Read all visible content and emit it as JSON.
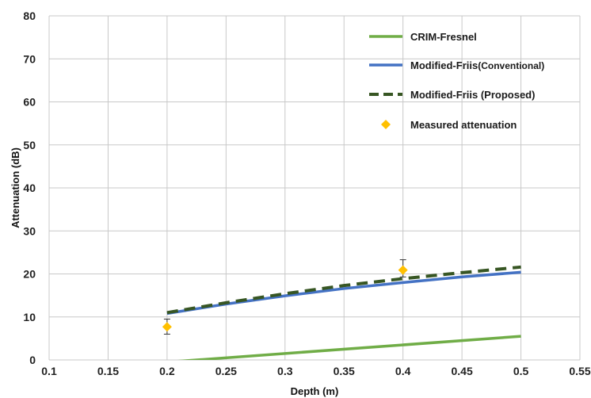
{
  "chart_data": {
    "type": "line",
    "xlabel": "Depth (m)",
    "ylabel": "Attenuation (dB)",
    "xlim": [
      0.1,
      0.55
    ],
    "ylim": [
      0,
      80
    ],
    "xticks": [
      "0.1",
      "0.15",
      "0.2",
      "0.25",
      "0.3",
      "0.35",
      "0.4",
      "0.45",
      "0.5",
      "0.55"
    ],
    "yticks": [
      "0",
      "10",
      "20",
      "30",
      "40",
      "50",
      "60",
      "70",
      "80"
    ],
    "grid": true,
    "legend_position": "top-right",
    "series": [
      {
        "name": "CRIM-Fresnel",
        "style": "solid",
        "color": "#70ad47",
        "x": [
          0.2,
          0.5
        ],
        "y": [
          -0.5,
          5.5
        ]
      },
      {
        "name": "Modified-Friis",
        "name_suffix": "(Conventional)",
        "style": "solid",
        "color": "#4472c4",
        "x": [
          0.2,
          0.25,
          0.3,
          0.35,
          0.4,
          0.45,
          0.5
        ],
        "y": [
          10.8,
          13.0,
          14.9,
          16.6,
          18.0,
          19.3,
          20.4
        ]
      },
      {
        "name": "Modified-Friis (Proposed)",
        "style": "dashed",
        "color": "#375623",
        "x": [
          0.2,
          0.25,
          0.3,
          0.35,
          0.4,
          0.45,
          0.5
        ],
        "y": [
          11.0,
          13.3,
          15.4,
          17.3,
          18.9,
          20.3,
          21.6
        ]
      },
      {
        "name": "Measured attenuation",
        "style": "marker",
        "marker": "diamond",
        "color": "#ffc000",
        "x": [
          0.2,
          0.4
        ],
        "y": [
          7.7,
          20.9
        ],
        "error_low": [
          6.0,
          19.3
        ],
        "error_high": [
          9.5,
          23.3
        ]
      }
    ]
  }
}
